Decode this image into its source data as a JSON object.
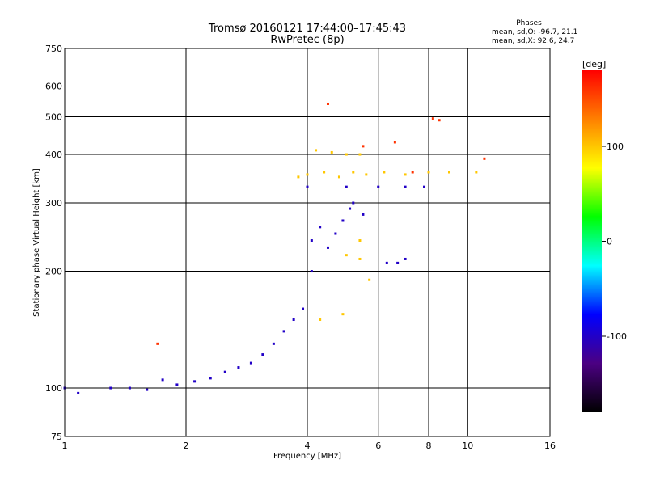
{
  "chart_data": {
    "type": "scatter",
    "title": "Tromsø 20160121 17:44:00–17:45:43",
    "subtitle": "RwPretec (8p)",
    "xlabel": "Frequency [MHz]",
    "ylabel": "Stationary phase Virtual Height [km]",
    "x_scale": "log",
    "y_scale": "log",
    "xlim": [
      1,
      16
    ],
    "ylim": [
      75,
      750
    ],
    "x_ticks": [
      1,
      2,
      4,
      6,
      8,
      10,
      16
    ],
    "y_ticks": [
      75,
      100,
      200,
      300,
      400,
      500,
      600,
      750
    ],
    "x_grid": [
      2,
      4,
      6,
      8,
      10
    ],
    "y_grid": [
      100,
      200,
      300,
      400,
      500,
      600
    ],
    "grid": true,
    "phase_stats": {
      "title": "Phases",
      "line_o": "mean, sd,O: -96.7, 21.1",
      "line_x": "mean, sd,X:  92.6, 24.7"
    },
    "colorbar": {
      "label": "[deg]",
      "range": [
        -180,
        180
      ],
      "ticks": [
        100,
        0,
        -100
      ],
      "colormap": [
        "#000000",
        "#4b0082",
        "#0000ff",
        "#00ffff",
        "#00ff00",
        "#ffff00",
        "#ff8000",
        "#ff0000"
      ]
    },
    "series": [
      {
        "values": [
          [
            1.0,
            100
          ],
          [
            1.08,
            97
          ],
          [
            1.3,
            100
          ],
          [
            1.45,
            100
          ],
          [
            1.6,
            99
          ],
          [
            1.75,
            105
          ],
          [
            1.9,
            102
          ],
          [
            2.1,
            104
          ],
          [
            2.3,
            106
          ],
          [
            2.5,
            110
          ],
          [
            2.7,
            113
          ],
          [
            2.9,
            116
          ],
          [
            3.1,
            122
          ],
          [
            3.3,
            130
          ],
          [
            3.5,
            140
          ],
          [
            3.7,
            150
          ],
          [
            3.9,
            160
          ],
          [
            4.1,
            200
          ],
          [
            4.1,
            240
          ],
          [
            4.3,
            260
          ],
          [
            4.5,
            230
          ],
          [
            4.7,
            250
          ],
          [
            4.9,
            270
          ],
          [
            5.1,
            290
          ],
          [
            5.2,
            300
          ],
          [
            5.5,
            280
          ],
          [
            6.3,
            210
          ],
          [
            6.7,
            210
          ],
          [
            7.0,
            215
          ],
          [
            4.0,
            330
          ],
          [
            5.0,
            330
          ],
          [
            6.0,
            330
          ],
          [
            7.0,
            330
          ],
          [
            7.8,
            330
          ]
        ],
        "phase": -100
      },
      {
        "values": [
          [
            3.8,
            350
          ],
          [
            4.0,
            355
          ],
          [
            4.4,
            360
          ],
          [
            4.8,
            350
          ],
          [
            5.2,
            360
          ],
          [
            5.6,
            355
          ],
          [
            6.2,
            360
          ],
          [
            7.0,
            355
          ],
          [
            8.0,
            360
          ],
          [
            9.0,
            360
          ],
          [
            10.5,
            360
          ],
          [
            4.2,
            410
          ],
          [
            4.6,
            405
          ],
          [
            5.0,
            400
          ],
          [
            5.4,
            400
          ],
          [
            5.0,
            220
          ],
          [
            5.4,
            215
          ],
          [
            4.3,
            150
          ],
          [
            4.9,
            155
          ],
          [
            5.4,
            240
          ],
          [
            5.7,
            190
          ]
        ],
        "phase": 100
      },
      {
        "values": [
          [
            4.5,
            540
          ],
          [
            8.2,
            495
          ],
          [
            8.5,
            490
          ],
          [
            5.5,
            420
          ],
          [
            6.6,
            430
          ],
          [
            7.3,
            360
          ],
          [
            11.0,
            390
          ],
          [
            1.7,
            130
          ]
        ],
        "phase": 160
      }
    ]
  }
}
